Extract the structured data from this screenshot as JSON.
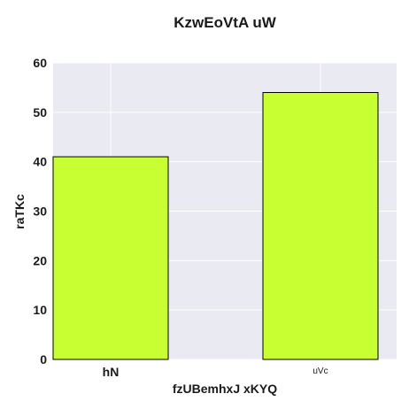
{
  "chart_data": {
    "type": "bar",
    "title": "KzwEoVtA uW",
    "xlabel": "fzUBemhxJ xKYQ",
    "ylabel": "raTKc",
    "categories": [
      "hN",
      "uVc"
    ],
    "values": [
      41,
      54
    ],
    "ylim": [
      0,
      60
    ],
    "yticks": [
      "0",
      "10",
      "20",
      "30",
      "40",
      "50",
      "60"
    ],
    "bar_color": "#c8ff32",
    "bar_edge_color": "#000000",
    "plot_background": "#eaeaf2",
    "grid": true,
    "legend": "none"
  }
}
